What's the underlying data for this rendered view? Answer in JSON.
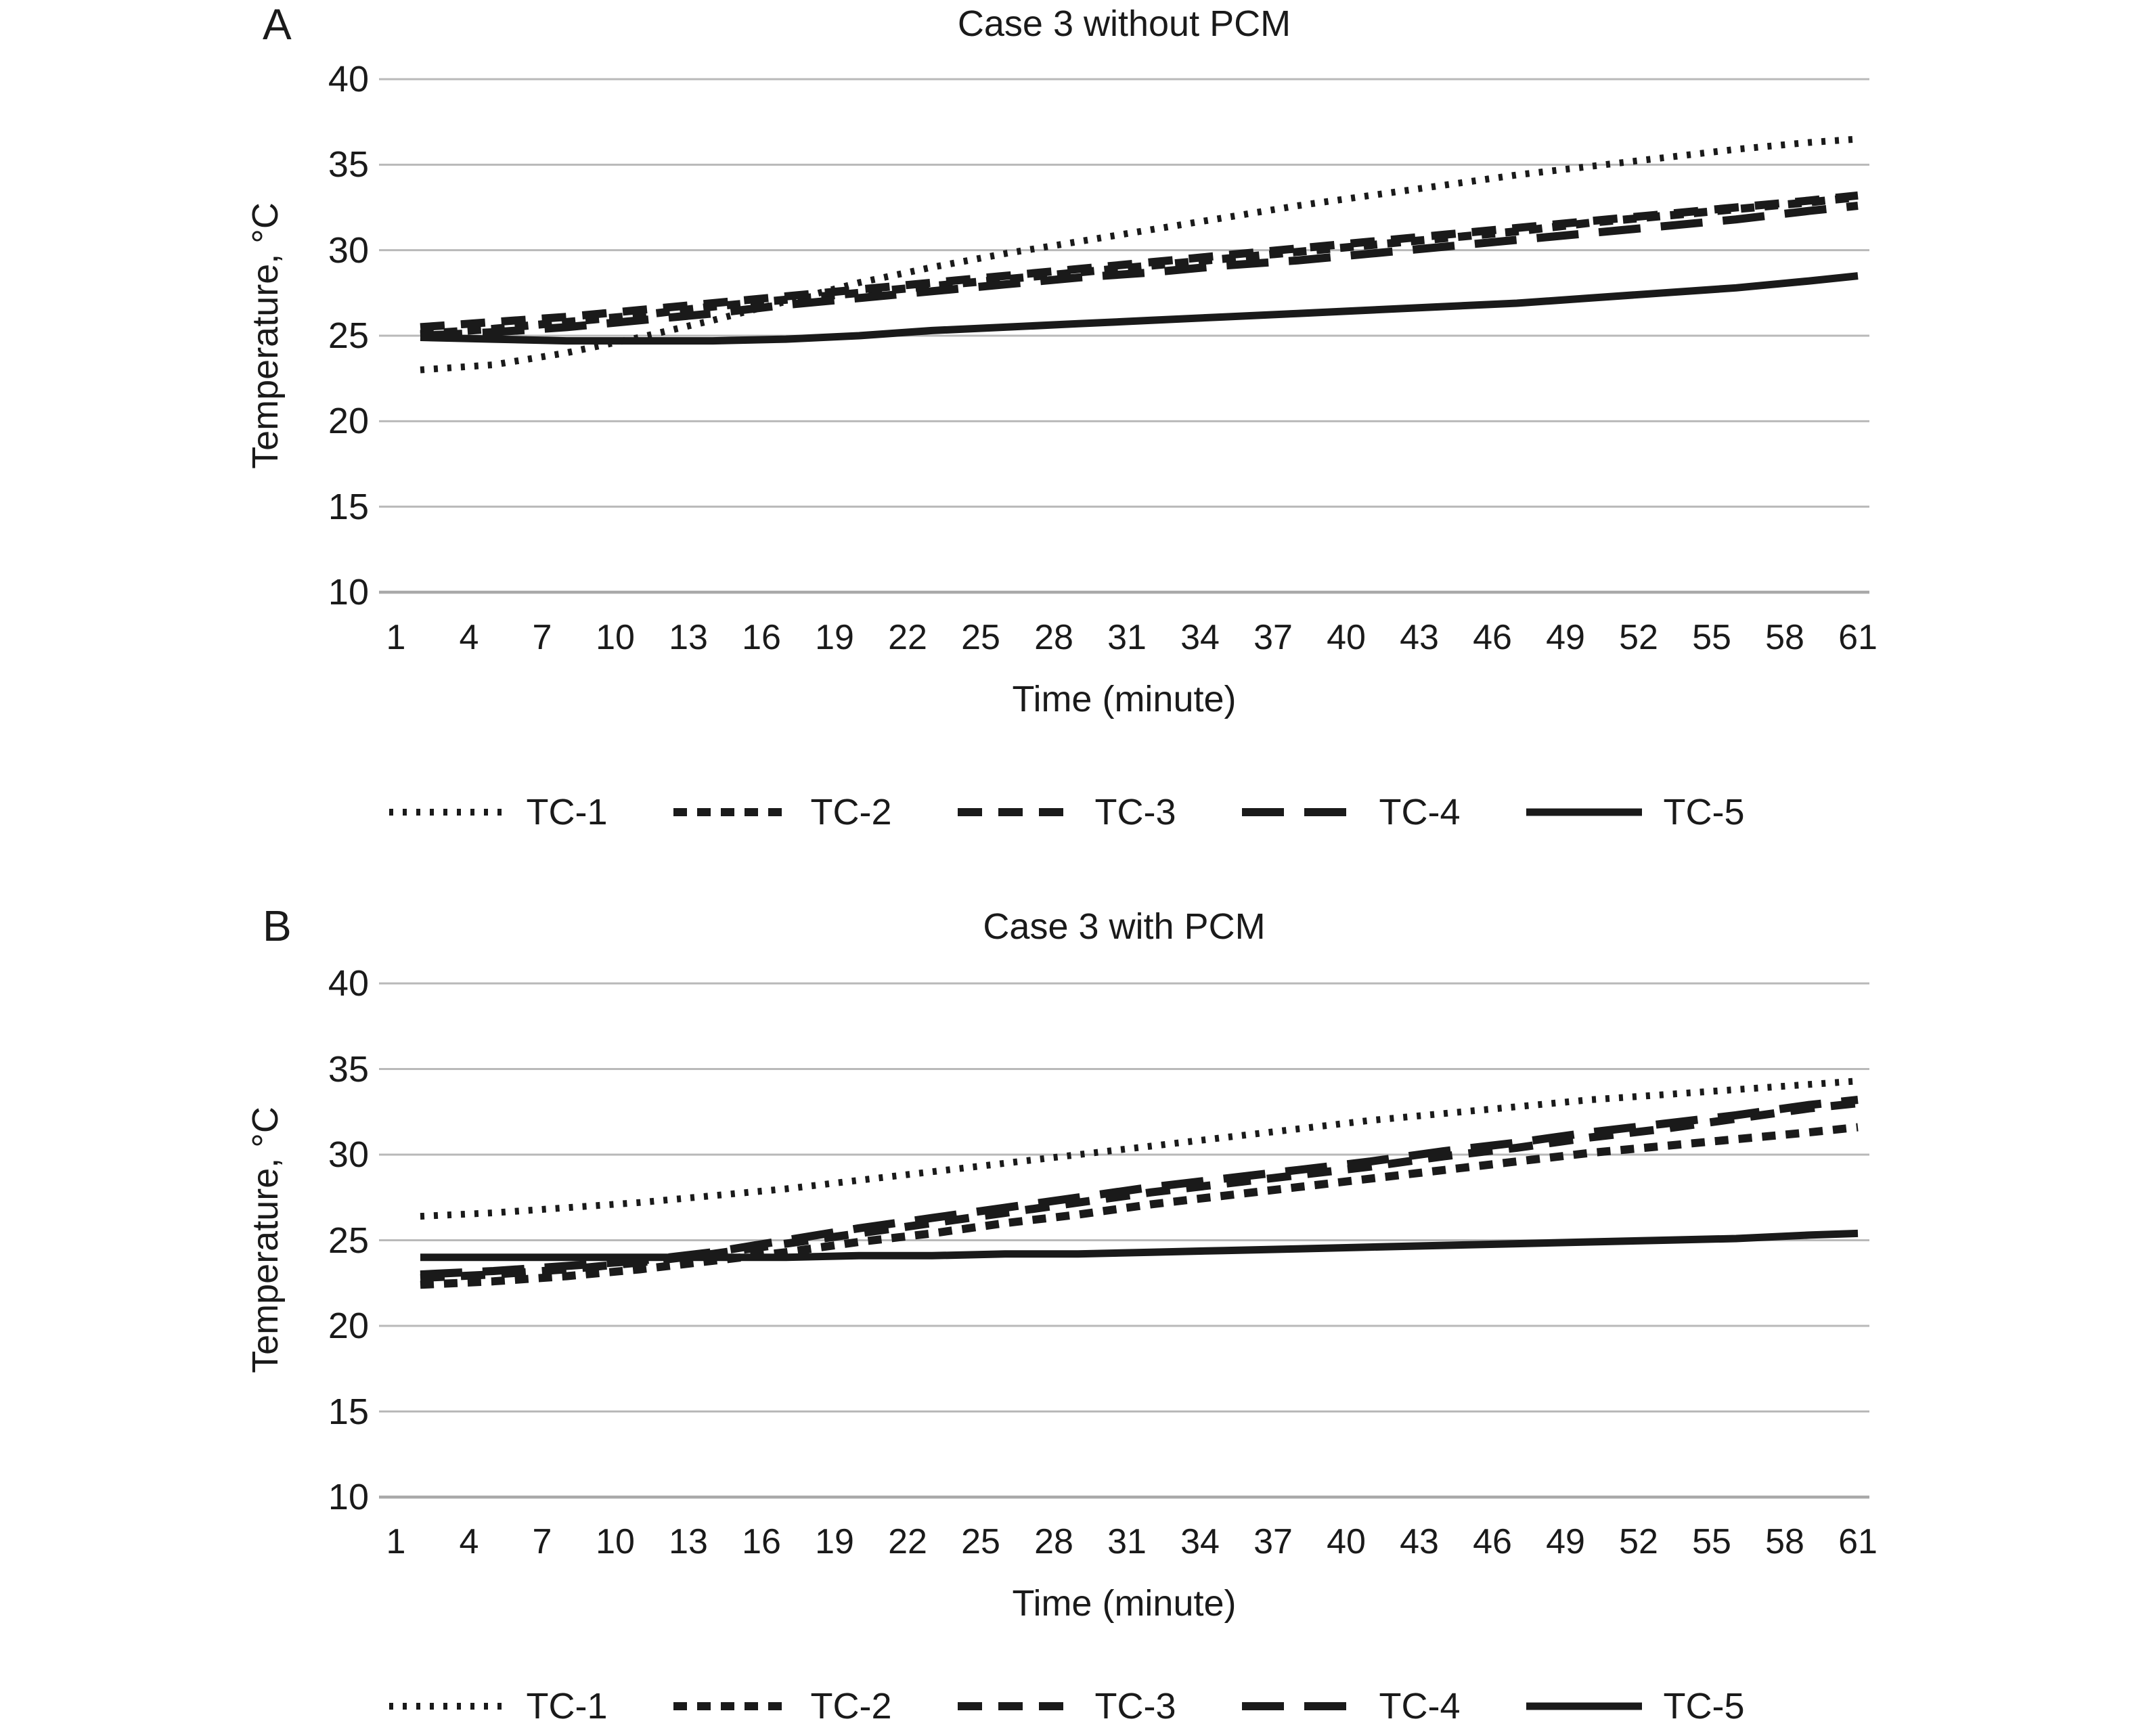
{
  "page": {
    "background": "#ffffff",
    "line_color": "#1a1a1a",
    "grid_color": "#b9b9b9",
    "axis_line_color": "#a9a9a9"
  },
  "chart_data": [
    {
      "type": "line",
      "panel_label": "A",
      "title": "Case 3 without PCM",
      "xlabel": "Time (minute)",
      "ylabel": "Temperature, °C",
      "ylim": [
        10,
        40
      ],
      "y_ticks": [
        40,
        35,
        30,
        25,
        20,
        15,
        10
      ],
      "x_ticks": [
        1,
        4,
        7,
        10,
        13,
        16,
        19,
        22,
        25,
        28,
        31,
        34,
        37,
        40,
        43,
        46,
        49,
        52,
        55,
        58,
        61
      ],
      "grid": "horizontal",
      "legend_position": "bottom",
      "minutes": [
        2,
        5,
        8,
        11,
        14,
        17,
        20,
        23,
        26,
        29,
        32,
        35,
        38,
        41,
        44,
        47,
        50,
        53,
        56,
        59,
        61
      ],
      "series": [
        {
          "name": "TC-1",
          "dash_style": "dotted",
          "values": [
            23.0,
            23.3,
            24.0,
            24.9,
            25.9,
            27.0,
            28.1,
            29.0,
            29.8,
            30.5,
            31.2,
            31.9,
            32.6,
            33.2,
            33.8,
            34.4,
            34.9,
            35.4,
            35.9,
            36.3,
            36.5
          ]
        },
        {
          "name": "TC-2",
          "dash_style": "dash-small",
          "values": [
            25.1,
            25.4,
            25.8,
            26.2,
            26.7,
            27.1,
            27.5,
            27.9,
            28.3,
            28.7,
            29.1,
            29.5,
            29.9,
            30.3,
            30.7,
            31.1,
            31.6,
            32.0,
            32.4,
            32.8,
            33.1
          ]
        },
        {
          "name": "TC-3",
          "dash_style": "dash-medium",
          "values": [
            25.5,
            25.8,
            26.1,
            26.5,
            26.9,
            27.3,
            27.7,
            28.1,
            28.5,
            28.9,
            29.3,
            29.7,
            30.1,
            30.5,
            30.9,
            31.3,
            31.7,
            32.1,
            32.5,
            32.9,
            33.2
          ]
        },
        {
          "name": "TC-4",
          "dash_style": "dash-long",
          "values": [
            25.0,
            25.2,
            25.5,
            25.9,
            26.3,
            26.8,
            27.2,
            27.6,
            28.0,
            28.4,
            28.7,
            29.1,
            29.4,
            29.8,
            30.2,
            30.6,
            31.0,
            31.4,
            31.8,
            32.3,
            32.6
          ]
        },
        {
          "name": "TC-5",
          "dash_style": "solid",
          "values": [
            24.9,
            24.8,
            24.7,
            24.7,
            24.7,
            24.8,
            25.0,
            25.3,
            25.5,
            25.7,
            25.9,
            26.1,
            26.3,
            26.5,
            26.7,
            26.9,
            27.2,
            27.5,
            27.8,
            28.2,
            28.5
          ]
        }
      ]
    },
    {
      "type": "line",
      "panel_label": "B",
      "title": "Case 3 with PCM",
      "xlabel": "Time (minute)",
      "ylabel": "Temperature, °C",
      "ylim": [
        10,
        40
      ],
      "y_ticks": [
        40,
        35,
        30,
        25,
        20,
        15,
        10
      ],
      "x_ticks": [
        1,
        4,
        7,
        10,
        13,
        16,
        19,
        22,
        25,
        28,
        31,
        34,
        37,
        40,
        43,
        46,
        49,
        52,
        55,
        58,
        61
      ],
      "grid": "horizontal",
      "legend_position": "bottom",
      "minutes": [
        2,
        5,
        8,
        11,
        14,
        17,
        20,
        23,
        26,
        29,
        32,
        35,
        38,
        41,
        44,
        47,
        50,
        53,
        56,
        59,
        61
      ],
      "series": [
        {
          "name": "TC-1",
          "dash_style": "dotted",
          "values": [
            26.4,
            26.6,
            26.9,
            27.2,
            27.6,
            28.0,
            28.5,
            29.0,
            29.5,
            30.0,
            30.5,
            31.0,
            31.5,
            32.0,
            32.4,
            32.8,
            33.2,
            33.5,
            33.8,
            34.1,
            34.3
          ]
        },
        {
          "name": "TC-2",
          "dash_style": "dash-small",
          "values": [
            22.4,
            22.6,
            22.9,
            23.3,
            23.8,
            24.3,
            24.9,
            25.4,
            26.0,
            26.5,
            27.1,
            27.6,
            28.1,
            28.6,
            29.1,
            29.6,
            30.1,
            30.5,
            30.9,
            31.3,
            31.6
          ]
        },
        {
          "name": "TC-3",
          "dash_style": "dash-medium",
          "values": [
            22.8,
            23.0,
            23.3,
            23.7,
            24.2,
            24.8,
            25.4,
            26.0,
            26.6,
            27.2,
            27.8,
            28.3,
            28.8,
            29.3,
            29.9,
            30.4,
            31.0,
            31.5,
            32.1,
            32.7,
            33.0
          ]
        },
        {
          "name": "TC-4",
          "dash_style": "dash-long",
          "values": [
            23.0,
            23.2,
            23.5,
            23.8,
            24.3,
            25.0,
            25.7,
            26.3,
            26.9,
            27.5,
            28.1,
            28.6,
            29.1,
            29.6,
            30.2,
            30.7,
            31.3,
            31.8,
            32.3,
            32.9,
            33.2
          ]
        },
        {
          "name": "TC-5",
          "dash_style": "solid",
          "values": [
            24.0,
            24.0,
            24.0,
            24.0,
            24.0,
            24.0,
            24.1,
            24.1,
            24.2,
            24.2,
            24.3,
            24.4,
            24.5,
            24.6,
            24.7,
            24.8,
            24.9,
            25.0,
            25.1,
            25.3,
            25.4
          ]
        }
      ]
    }
  ]
}
